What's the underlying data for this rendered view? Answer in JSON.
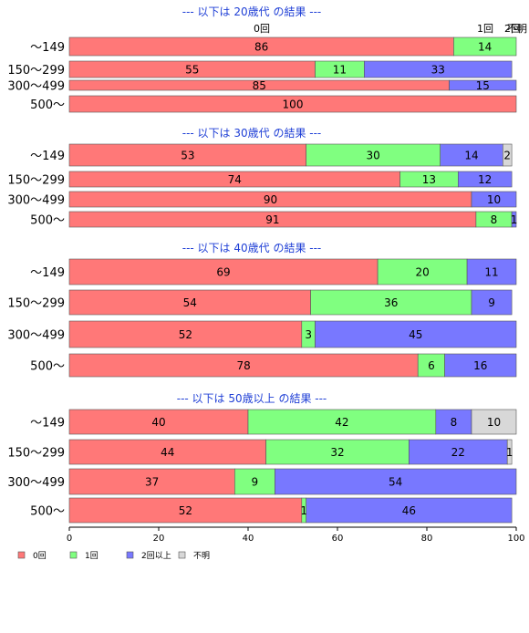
{
  "chart_data": {
    "type": "bar",
    "orientation": "horizontal",
    "stacked": true,
    "xlim": [
      0,
      100
    ],
    "x_ticks": [
      0,
      20,
      40,
      60,
      80,
      100
    ],
    "legend_position": "bottom-left",
    "series_colors": [
      "#ff7878",
      "#80ff80",
      "#7878ff",
      "#d8d8d8"
    ],
    "series": [
      "0回",
      "1回",
      "2回以上",
      "不明"
    ],
    "top_labels": [
      "0回",
      "1回",
      "2回",
      "不明"
    ],
    "panels": [
      {
        "title": "--- 以下は 20歳代 の結果 ---",
        "categories": [
          "～149",
          "150～299",
          "300～499",
          "500～"
        ],
        "values": [
          [
            86,
            14,
            0,
            0
          ],
          [
            55,
            11,
            33,
            0
          ],
          [
            85,
            0,
            15,
            0
          ],
          [
            100,
            0,
            0,
            0
          ]
        ]
      },
      {
        "title": "--- 以下は 30歳代 の結果 ---",
        "categories": [
          "～149",
          "150～299",
          "300～499",
          "500～"
        ],
        "values": [
          [
            53,
            30,
            14,
            2
          ],
          [
            74,
            13,
            12,
            0
          ],
          [
            90,
            0,
            10,
            0
          ],
          [
            91,
            8,
            1,
            0
          ]
        ]
      },
      {
        "title": "--- 以下は 40歳代 の結果 ---",
        "categories": [
          "～149",
          "150～299",
          "300～499",
          "500～"
        ],
        "values": [
          [
            69,
            20,
            11,
            0
          ],
          [
            54,
            36,
            9,
            0
          ],
          [
            52,
            3,
            45,
            0
          ],
          [
            78,
            6,
            16,
            0
          ]
        ]
      },
      {
        "title": "--- 以下は 50歳以上 の結果 ---",
        "categories": [
          "～149",
          "150～299",
          "300～499",
          "500～"
        ],
        "values": [
          [
            40,
            42,
            8,
            10
          ],
          [
            44,
            32,
            22,
            1
          ],
          [
            37,
            9,
            54,
            0
          ],
          [
            52,
            1,
            46,
            0
          ]
        ]
      }
    ]
  }
}
